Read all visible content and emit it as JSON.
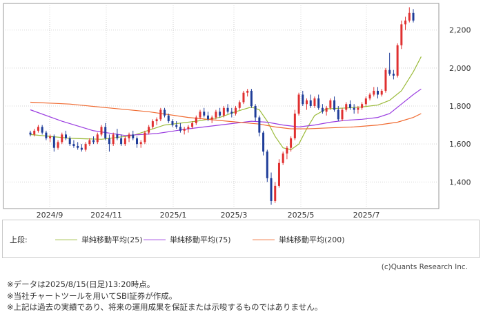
{
  "chart_data": {
    "type": "candlestick",
    "x_ticks": [
      "2024/9",
      "2024/11",
      "2025/1",
      "2025/3",
      "2025/5",
      "2025/7"
    ],
    "y_ticks": [
      "1,400",
      "1,600",
      "1,800",
      "2,000",
      "2,200"
    ],
    "ylim": [
      1260,
      2340
    ],
    "grid": true,
    "legend_position": "bottom",
    "up_color": "#e03030",
    "down_color": "#1f3d99",
    "candles": [
      [
        1660,
        1670,
        1640,
        1650
      ],
      [
        1650,
        1680,
        1640,
        1670
      ],
      [
        1670,
        1700,
        1660,
        1690
      ],
      [
        1690,
        1700,
        1650,
        1660
      ],
      [
        1660,
        1670,
        1620,
        1630
      ],
      [
        1630,
        1650,
        1610,
        1640
      ],
      [
        1640,
        1650,
        1560,
        1580
      ],
      [
        1580,
        1620,
        1570,
        1610
      ],
      [
        1610,
        1660,
        1600,
        1650
      ],
      [
        1650,
        1670,
        1620,
        1630
      ],
      [
        1630,
        1640,
        1590,
        1600
      ],
      [
        1600,
        1620,
        1580,
        1590
      ],
      [
        1590,
        1610,
        1570,
        1580
      ],
      [
        1580,
        1600,
        1560,
        1570
      ],
      [
        1570,
        1610,
        1560,
        1600
      ],
      [
        1600,
        1630,
        1590,
        1620
      ],
      [
        1620,
        1640,
        1600,
        1610
      ],
      [
        1610,
        1660,
        1600,
        1650
      ],
      [
        1650,
        1700,
        1640,
        1690
      ],
      [
        1690,
        1710,
        1620,
        1630
      ],
      [
        1630,
        1650,
        1560,
        1600
      ],
      [
        1600,
        1660,
        1590,
        1650
      ],
      [
        1650,
        1680,
        1620,
        1630
      ],
      [
        1630,
        1650,
        1590,
        1600
      ],
      [
        1600,
        1640,
        1590,
        1630
      ],
      [
        1630,
        1660,
        1610,
        1650
      ],
      [
        1650,
        1670,
        1620,
        1630
      ],
      [
        1630,
        1640,
        1580,
        1600
      ],
      [
        1600,
        1620,
        1580,
        1610
      ],
      [
        1610,
        1670,
        1600,
        1660
      ],
      [
        1660,
        1700,
        1650,
        1690
      ],
      [
        1690,
        1730,
        1680,
        1720
      ],
      [
        1720,
        1740,
        1700,
        1730
      ],
      [
        1730,
        1790,
        1720,
        1780
      ],
      [
        1780,
        1790,
        1740,
        1750
      ],
      [
        1750,
        1760,
        1710,
        1720
      ],
      [
        1720,
        1730,
        1690,
        1700
      ],
      [
        1700,
        1720,
        1680,
        1690
      ],
      [
        1690,
        1710,
        1660,
        1670
      ],
      [
        1670,
        1690,
        1650,
        1680
      ],
      [
        1680,
        1700,
        1660,
        1690
      ],
      [
        1690,
        1720,
        1680,
        1710
      ],
      [
        1710,
        1750,
        1700,
        1740
      ],
      [
        1740,
        1780,
        1730,
        1770
      ],
      [
        1770,
        1790,
        1740,
        1750
      ],
      [
        1750,
        1770,
        1720,
        1730
      ],
      [
        1730,
        1750,
        1710,
        1740
      ],
      [
        1740,
        1780,
        1730,
        1770
      ],
      [
        1770,
        1790,
        1740,
        1750
      ],
      [
        1750,
        1800,
        1740,
        1790
      ],
      [
        1790,
        1810,
        1760,
        1770
      ],
      [
        1770,
        1790,
        1740,
        1760
      ],
      [
        1760,
        1800,
        1750,
        1790
      ],
      [
        1790,
        1830,
        1780,
        1820
      ],
      [
        1820,
        1880,
        1810,
        1870
      ],
      [
        1870,
        1890,
        1850,
        1880
      ],
      [
        1880,
        1890,
        1790,
        1800
      ],
      [
        1800,
        1810,
        1720,
        1740
      ],
      [
        1740,
        1750,
        1640,
        1660
      ],
      [
        1660,
        1670,
        1540,
        1560
      ],
      [
        1560,
        1570,
        1400,
        1420
      ],
      [
        1420,
        1450,
        1280,
        1300
      ],
      [
        1300,
        1400,
        1290,
        1380
      ],
      [
        1380,
        1520,
        1370,
        1500
      ],
      [
        1500,
        1560,
        1490,
        1550
      ],
      [
        1550,
        1590,
        1520,
        1580
      ],
      [
        1580,
        1640,
        1560,
        1630
      ],
      [
        1630,
        1780,
        1620,
        1760
      ],
      [
        1760,
        1870,
        1750,
        1860
      ],
      [
        1860,
        1880,
        1800,
        1810
      ],
      [
        1810,
        1840,
        1780,
        1830
      ],
      [
        1830,
        1860,
        1790,
        1800
      ],
      [
        1800,
        1850,
        1790,
        1840
      ],
      [
        1840,
        1860,
        1780,
        1790
      ],
      [
        1790,
        1810,
        1760,
        1770
      ],
      [
        1770,
        1800,
        1750,
        1790
      ],
      [
        1790,
        1840,
        1780,
        1830
      ],
      [
        1830,
        1850,
        1770,
        1780
      ],
      [
        1780,
        1800,
        1720,
        1730
      ],
      [
        1730,
        1790,
        1720,
        1780
      ],
      [
        1780,
        1820,
        1770,
        1810
      ],
      [
        1810,
        1830,
        1780,
        1790
      ],
      [
        1790,
        1810,
        1760,
        1780
      ],
      [
        1780,
        1800,
        1760,
        1790
      ],
      [
        1790,
        1820,
        1780,
        1810
      ],
      [
        1810,
        1850,
        1800,
        1840
      ],
      [
        1840,
        1870,
        1830,
        1860
      ],
      [
        1860,
        1900,
        1850,
        1880
      ],
      [
        1880,
        1900,
        1840,
        1860
      ],
      [
        1860,
        1890,
        1850,
        1880
      ],
      [
        1880,
        2000,
        1870,
        1990
      ],
      [
        1990,
        2080,
        1960,
        1970
      ],
      [
        1970,
        1990,
        1940,
        1960
      ],
      [
        1960,
        2130,
        1950,
        2120
      ],
      [
        2120,
        2250,
        2100,
        2230
      ],
      [
        2230,
        2270,
        2200,
        2250
      ],
      [
        2250,
        2320,
        2240,
        2290
      ],
      [
        2290,
        2310,
        2240,
        2250
      ]
    ],
    "ma_series": [
      {
        "name": "単純移動平均(25)",
        "color": "#9bbb3a",
        "values": [
          [
            0,
            1650
          ],
          [
            10,
            1630
          ],
          [
            18,
            1625
          ],
          [
            26,
            1645
          ],
          [
            34,
            1700
          ],
          [
            42,
            1720
          ],
          [
            48,
            1740
          ],
          [
            52,
            1770
          ],
          [
            56,
            1795
          ],
          [
            58,
            1780
          ],
          [
            60,
            1720
          ],
          [
            62,
            1640
          ],
          [
            64,
            1580
          ],
          [
            66,
            1570
          ],
          [
            68,
            1600
          ],
          [
            70,
            1680
          ],
          [
            72,
            1750
          ],
          [
            75,
            1785
          ],
          [
            80,
            1790
          ],
          [
            84,
            1795
          ],
          [
            88,
            1805
          ],
          [
            91,
            1830
          ],
          [
            94,
            1880
          ],
          [
            97,
            1980
          ],
          [
            99,
            2060
          ]
        ]
      },
      {
        "name": "単純移動平均(75)",
        "color": "#9a3ce0",
        "values": [
          [
            0,
            1780
          ],
          [
            8,
            1720
          ],
          [
            16,
            1670
          ],
          [
            24,
            1645
          ],
          [
            32,
            1655
          ],
          [
            40,
            1680
          ],
          [
            48,
            1700
          ],
          [
            56,
            1720
          ],
          [
            60,
            1715
          ],
          [
            64,
            1700
          ],
          [
            68,
            1690
          ],
          [
            72,
            1700
          ],
          [
            76,
            1715
          ],
          [
            80,
            1725
          ],
          [
            84,
            1730
          ],
          [
            88,
            1740
          ],
          [
            91,
            1760
          ],
          [
            94,
            1810
          ],
          [
            97,
            1860
          ],
          [
            99,
            1890
          ]
        ]
      },
      {
        "name": "単純移動平均(200)",
        "color": "#f06a30",
        "values": [
          [
            0,
            1820
          ],
          [
            10,
            1810
          ],
          [
            20,
            1790
          ],
          [
            30,
            1770
          ],
          [
            40,
            1740
          ],
          [
            50,
            1720
          ],
          [
            58,
            1705
          ],
          [
            62,
            1690
          ],
          [
            66,
            1680
          ],
          [
            70,
            1680
          ],
          [
            76,
            1685
          ],
          [
            82,
            1690
          ],
          [
            88,
            1700
          ],
          [
            93,
            1715
          ],
          [
            97,
            1740
          ],
          [
            99,
            1760
          ]
        ]
      }
    ]
  },
  "legend": {
    "prefix": "上段:",
    "items": [
      "単純移動平均(25)",
      "単純移動平均(75)",
      "単純移動平均(200)"
    ],
    "colors": [
      "#9bbb3a",
      "#9a3ce0",
      "#f06a30"
    ]
  },
  "credit": "(c)Quants Research Inc.",
  "notes": [
    "※データは2025/8/15(日足)13:20時点。",
    "※当社チャートツールを用いてSBI証券が作成。",
    "※上記は過去の実績であり、将来の運用成果を保証または示唆するものではありません。"
  ]
}
